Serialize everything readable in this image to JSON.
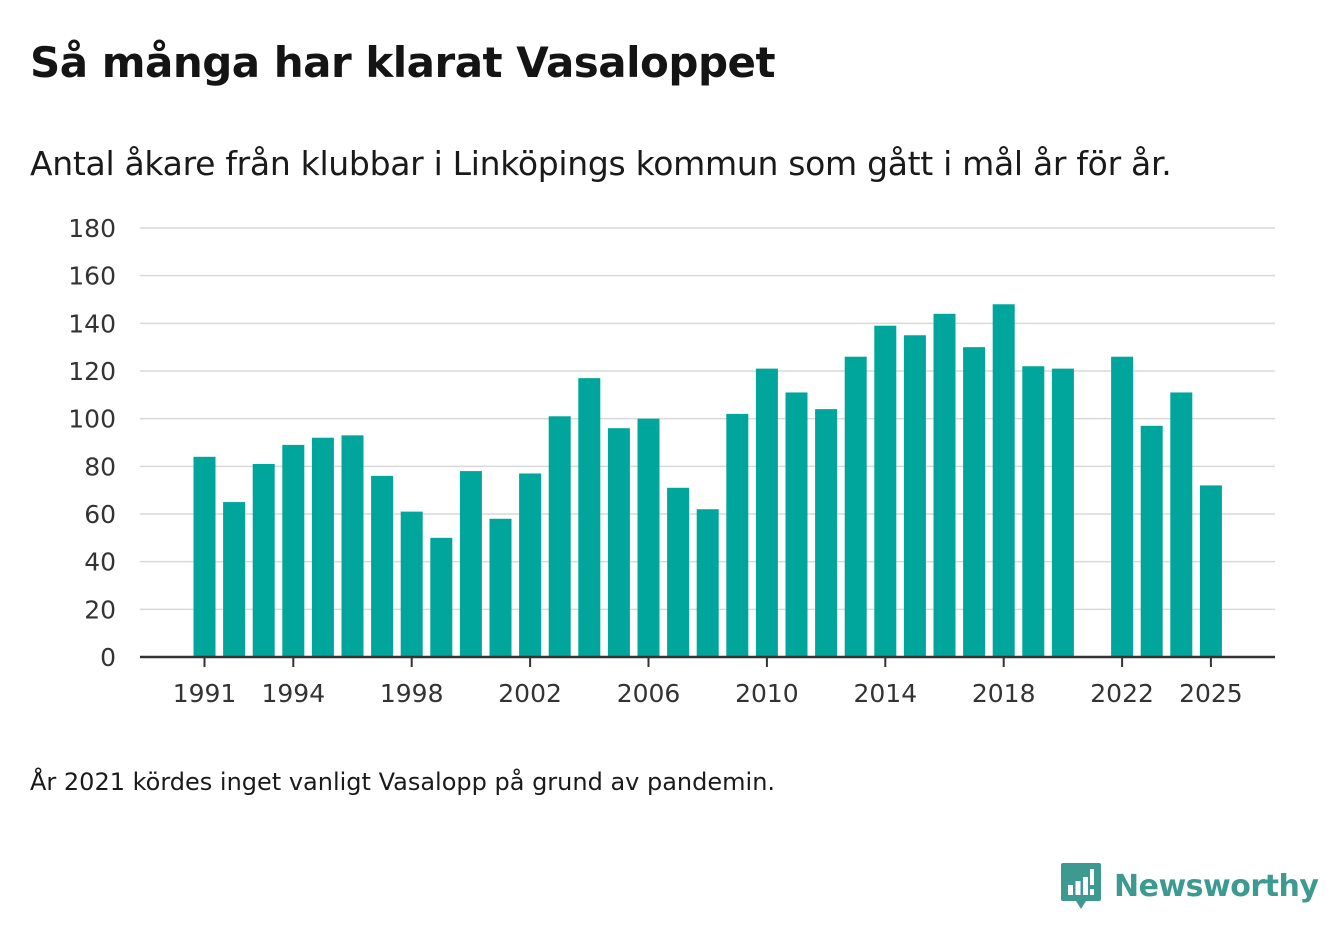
{
  "header": {
    "title": "Så många har klarat Vasaloppet",
    "subtitle": "Antal åkare från klubbar i Linköpings kommun som gått i mål år för år."
  },
  "footer": {
    "note": "År 2021 kördes inget vanligt Vasalopp på grund av pandemin.",
    "brand": "Newsworthy",
    "brand_icon": "newsworthy-logo-icon"
  },
  "colors": {
    "bar": "#00A59B",
    "grid": "#d9d9d9",
    "axis": "#333333",
    "brand": "#3d9a91"
  },
  "chart_data": {
    "type": "bar",
    "title": "Så många har klarat Vasaloppet",
    "xlabel": "",
    "ylabel": "",
    "ylim": [
      0,
      180
    ],
    "yticks": [
      0,
      20,
      40,
      60,
      80,
      100,
      120,
      140,
      160,
      180
    ],
    "xticks": [
      "1991",
      "1994",
      "1998",
      "2002",
      "2006",
      "2010",
      "2014",
      "2018",
      "2022",
      "2025"
    ],
    "grid": true,
    "categories": [
      "1991",
      "1992",
      "1993",
      "1994",
      "1995",
      "1996",
      "1997",
      "1998",
      "1999",
      "2000",
      "2001",
      "2002",
      "2003",
      "2004",
      "2005",
      "2006",
      "2007",
      "2008",
      "2009",
      "2010",
      "2011",
      "2012",
      "2013",
      "2014",
      "2015",
      "2016",
      "2017",
      "2018",
      "2019",
      "2020",
      "2021",
      "2022",
      "2023",
      "2024",
      "2025"
    ],
    "values": [
      84,
      65,
      81,
      89,
      92,
      93,
      76,
      61,
      50,
      78,
      58,
      77,
      101,
      117,
      96,
      100,
      71,
      62,
      102,
      121,
      111,
      104,
      126,
      139,
      135,
      144,
      130,
      148,
      122,
      121,
      null,
      126,
      97,
      111,
      72
    ]
  }
}
